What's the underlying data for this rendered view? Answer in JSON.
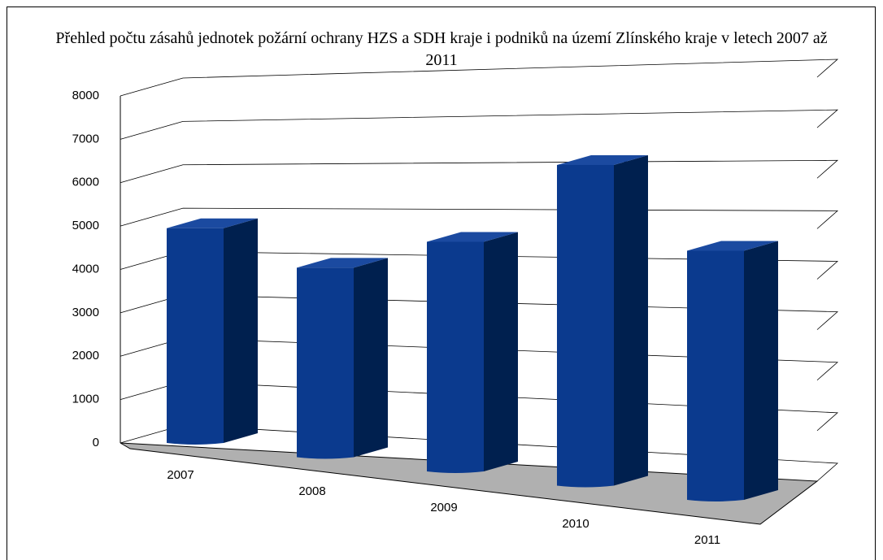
{
  "chart_data": {
    "type": "bar",
    "title": "Přehled počtu zásahů jednotek požární ochrany HZS a SDH kraje i podniků na území Zlínského kraje v letech 2007 až 2011",
    "categories": [
      "2007",
      "2008",
      "2009",
      "2010",
      "2011"
    ],
    "values": [
      4950,
      4200,
      4900,
      6600,
      4950
    ],
    "color": "#0b3a8e",
    "ylim": [
      0,
      8000
    ],
    "yticks": [
      0,
      1000,
      2000,
      3000,
      4000,
      5000,
      6000,
      7000,
      8000
    ],
    "grid": true
  }
}
